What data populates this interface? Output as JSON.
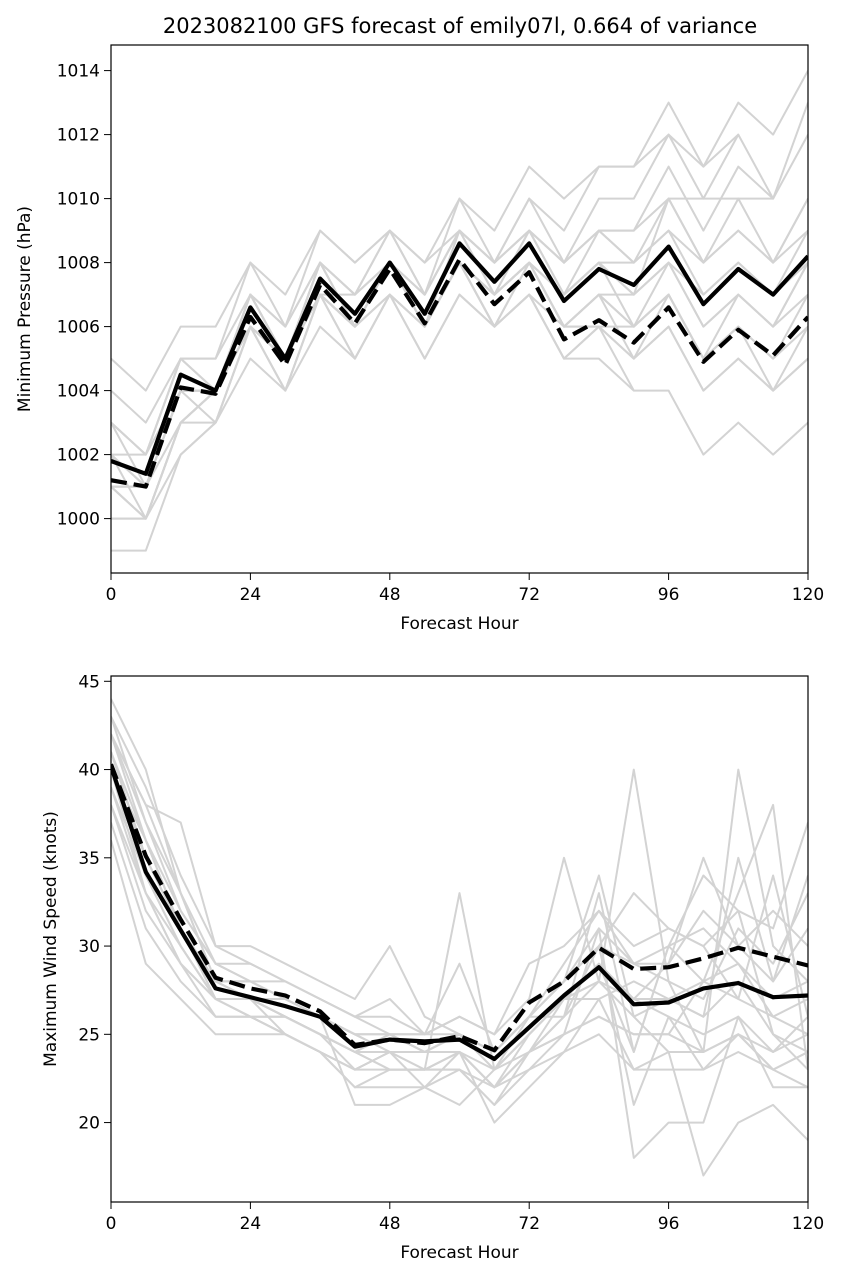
{
  "colors": {
    "ensemble": "#d3d3d3",
    "highlight": "#000000"
  },
  "chart_data": [
    {
      "type": "line",
      "title": "2023082100 GFS forecast of emily07l, 0.664 of variance",
      "xlabel": "Forecast Hour",
      "ylabel": "Minimum Pressure (hPa)",
      "xlim": [
        0,
        120
      ],
      "ylim": [
        998.3,
        1014.8
      ],
      "xticks": [
        0,
        24,
        48,
        72,
        96,
        120
      ],
      "yticks": [
        1000,
        1002,
        1004,
        1006,
        1008,
        1010,
        1012,
        1014
      ],
      "x": [
        0,
        6,
        12,
        18,
        24,
        30,
        36,
        42,
        48,
        54,
        60,
        66,
        72,
        78,
        84,
        90,
        96,
        102,
        108,
        114,
        120
      ],
      "grid": false,
      "ensemble": [
        [
          1001,
          1000,
          1003,
          1004,
          1007,
          1005,
          1008,
          1006,
          1008,
          1006,
          1009,
          1007,
          1009,
          1007,
          1008,
          1008,
          1009,
          1007,
          1008,
          1007,
          1008
        ],
        [
          1002,
          1001,
          1004,
          1004,
          1006,
          1005,
          1007,
          1006,
          1008,
          1006,
          1008,
          1007,
          1008,
          1007,
          1009,
          1008,
          1010,
          1008,
          1010,
          1008,
          1010
        ],
        [
          1000,
          1000,
          1002,
          1003,
          1005,
          1004,
          1006,
          1005,
          1007,
          1005,
          1007,
          1006,
          1007,
          1005,
          1005,
          1004,
          1004,
          1002,
          1003,
          1002,
          1003
        ],
        [
          1003,
          1002,
          1005,
          1004,
          1007,
          1005,
          1008,
          1007,
          1009,
          1007,
          1010,
          1008,
          1010,
          1008,
          1010,
          1010,
          1012,
          1010,
          1012,
          1010,
          1012
        ],
        [
          1001,
          1001,
          1004,
          1004,
          1006,
          1005,
          1007,
          1006,
          1008,
          1006,
          1008,
          1007,
          1008,
          1006,
          1007,
          1006,
          1007,
          1005,
          1006,
          1005,
          1006
        ],
        [
          1004,
          1003,
          1005,
          1005,
          1007,
          1006,
          1008,
          1007,
          1008,
          1007,
          1009,
          1008,
          1009,
          1008,
          1009,
          1009,
          1011,
          1009,
          1011,
          1010,
          1013
        ],
        [
          999,
          999,
          1002,
          1003,
          1006,
          1005,
          1007,
          1006,
          1008,
          1006,
          1008,
          1006,
          1008,
          1006,
          1006,
          1005,
          1006,
          1004,
          1005,
          1004,
          1005
        ],
        [
          1002,
          1001,
          1004,
          1003,
          1006,
          1004,
          1007,
          1005,
          1007,
          1006,
          1008,
          1007,
          1008,
          1007,
          1008,
          1007,
          1008,
          1006,
          1007,
          1006,
          1007
        ],
        [
          1003,
          1002,
          1005,
          1004,
          1007,
          1006,
          1008,
          1007,
          1009,
          1007,
          1009,
          1008,
          1010,
          1009,
          1011,
          1011,
          1013,
          1011,
          1013,
          1012,
          1014
        ],
        [
          1001,
          1000,
          1003,
          1003,
          1006,
          1004,
          1007,
          1005,
          1007,
          1005,
          1007,
          1006,
          1007,
          1005,
          1006,
          1005,
          1006,
          1004,
          1005,
          1004,
          1005
        ],
        [
          1002,
          1002,
          1005,
          1005,
          1008,
          1006,
          1009,
          1008,
          1009,
          1008,
          1010,
          1009,
          1011,
          1010,
          1011,
          1011,
          1012,
          1011,
          1012,
          null,
          null
        ],
        [
          1000,
          1000,
          1003,
          1004,
          1006,
          1005,
          1007,
          1006,
          1008,
          1006,
          1008,
          1007,
          1008,
          1006,
          1007,
          1006,
          1008,
          1007,
          1008,
          1007,
          1009
        ],
        [
          1005,
          1004,
          1006,
          1006,
          1008,
          1007,
          1009,
          1008,
          1009,
          1008,
          1009,
          1008,
          1009,
          1008,
          1009,
          1008,
          1009,
          1008,
          1009,
          1008,
          1009
        ],
        [
          1001,
          1001,
          1004,
          1004,
          1006,
          1005,
          1007,
          1006,
          1007,
          1006,
          1008,
          1007,
          1008,
          1007,
          1008,
          1007,
          1010,
          1010,
          1010,
          1010,
          null
        ],
        [
          1003,
          1001,
          1003,
          1004,
          1007,
          1005,
          1008,
          1006,
          1008,
          1006,
          1008,
          1006,
          1007,
          1006,
          1007,
          1007,
          1008,
          1006,
          1007,
          1006,
          1008
        ],
        [
          1002,
          1000,
          1003,
          1004,
          1006,
          1005,
          1007,
          1006,
          1008,
          1007,
          1009,
          1007,
          1009,
          1007,
          1008,
          1006,
          1007,
          1005,
          1006,
          1004,
          1006
        ],
        [
          1001,
          1001,
          1004,
          1004,
          1006,
          1005,
          1007,
          1006,
          1008,
          1006,
          1008,
          1006,
          1008,
          1006,
          1007,
          1005,
          1007,
          1005,
          1006,
          1005,
          1007
        ],
        [
          1002,
          1001,
          1004,
          1004,
          1007,
          1005,
          1008,
          1006,
          1008,
          1006,
          1008,
          1007,
          1008,
          1006,
          1006,
          1004,
          null,
          null,
          null,
          null,
          null
        ],
        [
          1001,
          1000,
          1003,
          1004,
          1006,
          1004,
          1007,
          1006,
          1007,
          1006,
          1008,
          1006,
          1007,
          1005,
          1006,
          1006,
          1007,
          1005,
          1007,
          1006,
          1008
        ],
        [
          1003,
          1002,
          1004,
          1004,
          1007,
          1005,
          1007,
          1007,
          1008,
          1007,
          1009,
          1008,
          1009,
          1008,
          1009,
          1009,
          1010,
          1008,
          1009,
          1008,
          1010
        ]
      ],
      "mean": [
        1001.8,
        1001.4,
        1004.5,
        1004.0,
        1006.6,
        1005.0,
        1007.5,
        1006.4,
        1008.0,
        1006.4,
        1008.6,
        1007.4,
        1008.6,
        1006.8,
        1007.8,
        1007.3,
        1008.5,
        1006.7,
        1007.8,
        1007.0,
        1008.2
      ],
      "dashed": [
        1001.2,
        1001.0,
        1004.1,
        1003.9,
        1006.3,
        1004.8,
        1007.3,
        1006.1,
        1007.8,
        1006.1,
        1008.1,
        1006.7,
        1007.7,
        1005.6,
        1006.2,
        1005.5,
        1006.6,
        1004.9,
        1005.9,
        1005.1,
        1006.3
      ]
    },
    {
      "type": "line",
      "title": "",
      "xlabel": "Forecast Hour",
      "ylabel": "Maximum Wind Speed (knots)",
      "xlim": [
        0,
        120
      ],
      "ylim": [
        15.5,
        45.3
      ],
      "xticks": [
        0,
        24,
        48,
        72,
        96,
        120
      ],
      "yticks": [
        20,
        25,
        30,
        35,
        40,
        45
      ],
      "x": [
        0,
        6,
        12,
        18,
        24,
        30,
        36,
        42,
        48,
        54,
        60,
        66,
        72,
        78,
        84,
        90,
        96,
        102,
        108,
        114,
        120
      ],
      "grid": false,
      "ensemble": [
        [
          44,
          40,
          33,
          28,
          28,
          27,
          26,
          25,
          24,
          24,
          25,
          24,
          26,
          28,
          30,
          33,
          31,
          30,
          32,
          31,
          37
        ],
        [
          42,
          38,
          37,
          30,
          30,
          29,
          28,
          27,
          30,
          26,
          25,
          23,
          25,
          27,
          28,
          40,
          28,
          24,
          40,
          30,
          28
        ],
        [
          40,
          35,
          31,
          27,
          27,
          26,
          25,
          24,
          23,
          23,
          33,
          23,
          24,
          27,
          29,
          24,
          30,
          28,
          33,
          38,
          23
        ],
        [
          43,
          37,
          32,
          29,
          29,
          28,
          27,
          26,
          25,
          25,
          26,
          25,
          27,
          35,
          28,
          27,
          27,
          26,
          35,
          28,
          34
        ],
        [
          38,
          33,
          29,
          27,
          26,
          26,
          25,
          24,
          24,
          24,
          24,
          22,
          24,
          26,
          30,
          21,
          26,
          23,
          25,
          23,
          24
        ],
        [
          41,
          36,
          31,
          28,
          27,
          27,
          26,
          25,
          25,
          25,
          29,
          24,
          26,
          28,
          34,
          26,
          24,
          17,
          20,
          21,
          19
        ],
        [
          36,
          29,
          27,
          25,
          25,
          25,
          24,
          23,
          23,
          23,
          23,
          21,
          24,
          25,
          31,
          18,
          20,
          20,
          26,
          22,
          22
        ],
        [
          42,
          38,
          33,
          29,
          28,
          27,
          26,
          25,
          24,
          24,
          24,
          23,
          25,
          27,
          29,
          27,
          29,
          35,
          30,
          32,
          30
        ],
        [
          39,
          34,
          30,
          27,
          27,
          25,
          24,
          22,
          22,
          22,
          23,
          21,
          23,
          25,
          26,
          25,
          25,
          28,
          27,
          26,
          27
        ],
        [
          40,
          34,
          30,
          27,
          27,
          26,
          25,
          23,
          24,
          22,
          24,
          22,
          24,
          26,
          33,
          24,
          30,
          34,
          32,
          25,
          24
        ],
        [
          37,
          31,
          28,
          26,
          26,
          26,
          25,
          24,
          23,
          23,
          24,
          22,
          23,
          24,
          27,
          23,
          24,
          24,
          25,
          24,
          25
        ],
        [
          41,
          35,
          31,
          28,
          28,
          27,
          26,
          21,
          21,
          22,
          21,
          23,
          26,
          28,
          30,
          29,
          28,
          27,
          31,
          29,
          33
        ],
        [
          43,
          39,
          34,
          30,
          29,
          28,
          27,
          26,
          27,
          25,
          26,
          25,
          29,
          30,
          32,
          29,
          30,
          31,
          29,
          26,
          25
        ],
        [
          40,
          33,
          29,
          27,
          26,
          25,
          24,
          23,
          24,
          23,
          24,
          22,
          25,
          27,
          28,
          26,
          27,
          26,
          28,
          25,
          23
        ],
        [
          42,
          36,
          31,
          28,
          27,
          26,
          25,
          24,
          25,
          24,
          25,
          24,
          26,
          26,
          28,
          27,
          26,
          25,
          26,
          24,
          26
        ],
        [
          39,
          33,
          30,
          27,
          26,
          25,
          24,
          23,
          24,
          23,
          24,
          20,
          22,
          24,
          25,
          23,
          23,
          23,
          24,
          23,
          24
        ],
        [
          41,
          35,
          31,
          28,
          27,
          26,
          25,
          24,
          25,
          24,
          25,
          23,
          25,
          27,
          27,
          28,
          27,
          28,
          29,
          27,
          28
        ],
        [
          38,
          32,
          29,
          26,
          26,
          25,
          24,
          22,
          23,
          23,
          23,
          22,
          24,
          25,
          26,
          25,
          25,
          24,
          25,
          23,
          22
        ],
        [
          40,
          36,
          32,
          29,
          28,
          27,
          26,
          25,
          25,
          24,
          25,
          24,
          26,
          28,
          31,
          29,
          29,
          32,
          30,
          28,
          31
        ],
        [
          42,
          37,
          33,
          28,
          28,
          28,
          27,
          26,
          26,
          25,
          25,
          24,
          26,
          29,
          32,
          30,
          31,
          30,
          27,
          34,
          26
        ]
      ],
      "mean": [
        40.2,
        34.2,
        30.9,
        27.6,
        27.1,
        26.6,
        26.0,
        24.3,
        24.7,
        24.6,
        24.7,
        23.6,
        25.4,
        27.2,
        28.8,
        26.7,
        26.8,
        27.6,
        27.9,
        27.1,
        27.2
      ],
      "dashed": [
        40.3,
        35.1,
        31.5,
        28.2,
        27.6,
        27.2,
        26.3,
        24.4,
        24.7,
        24.5,
        24.9,
        24.1,
        26.8,
        28.0,
        29.9,
        28.7,
        28.8,
        29.3,
        29.9,
        29.4,
        28.9
      ]
    }
  ]
}
